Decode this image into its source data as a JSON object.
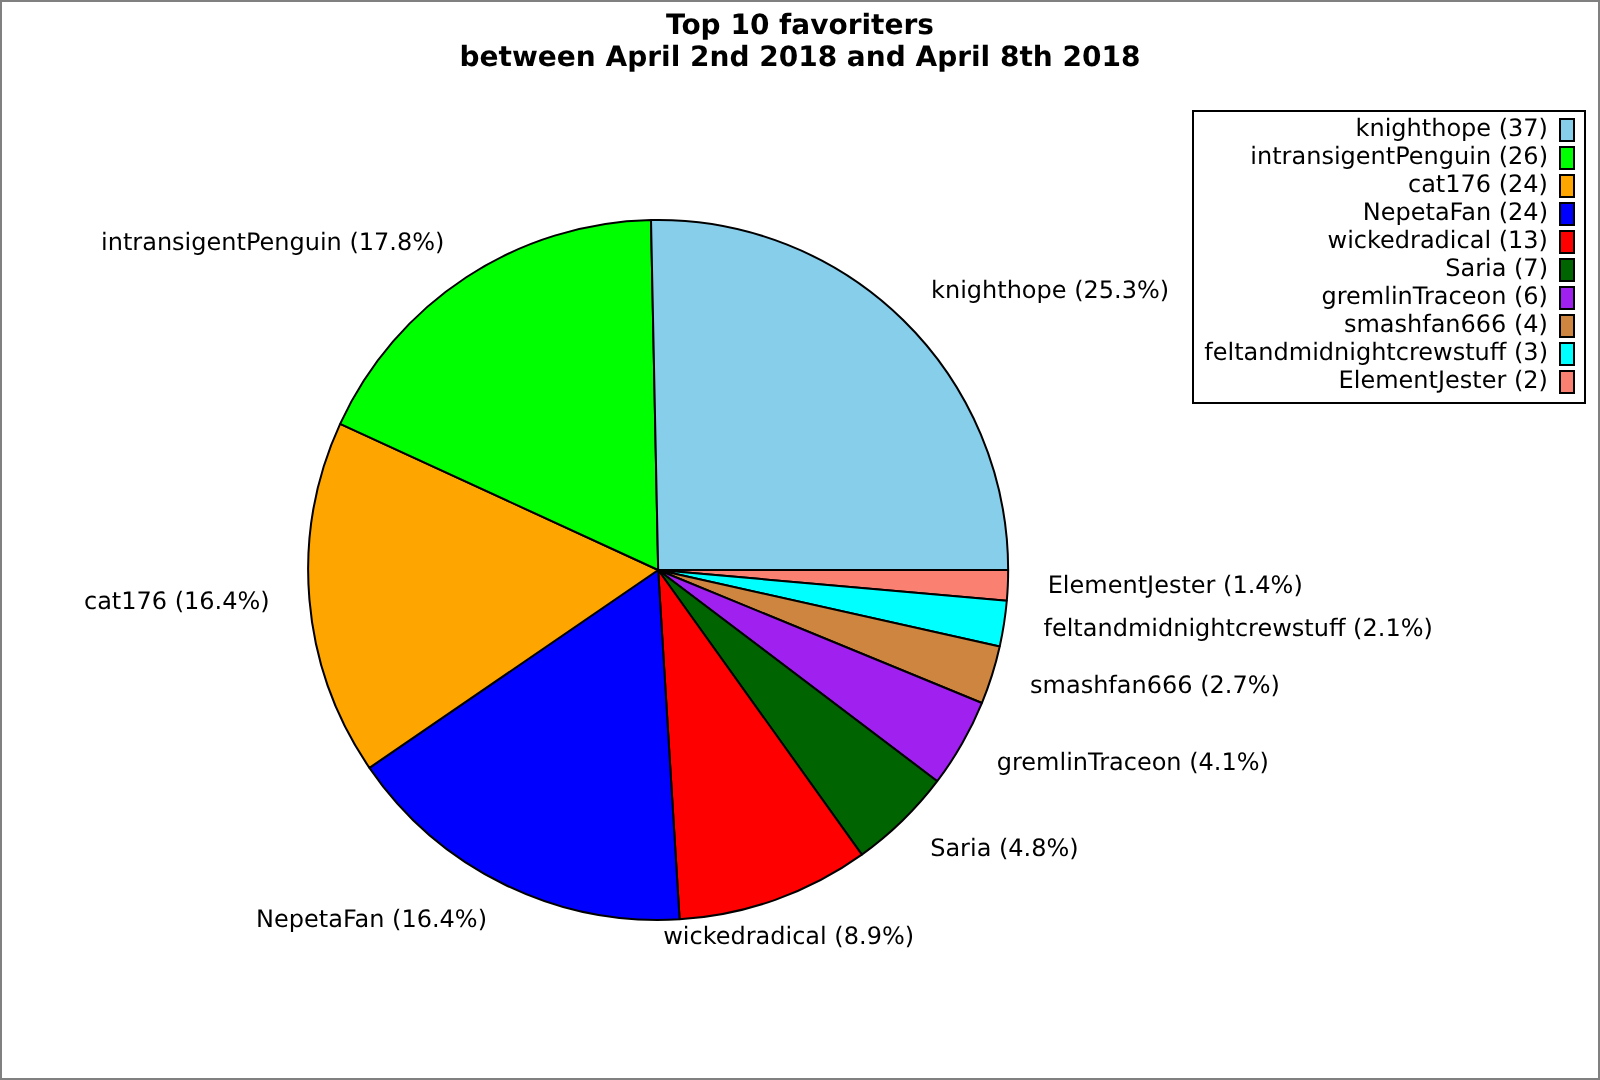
{
  "chart_data": {
    "type": "pie",
    "title": "Top 10 favoriters",
    "subtitle": "between April 2nd 2018 and April 8th 2018",
    "categories": [
      "knighthope (37)",
      "intransigentPenguin (26)",
      "cat176 (24)",
      "NepetaFan (24)",
      "wickedradical (13)",
      "Saria (7)",
      "gremlinTraceon (6)",
      "smashfan666 (4)",
      "feltandmidnightcrewstuff (3)",
      "ElementJester (2)"
    ],
    "values": [
      25.3,
      17.8,
      16.4,
      16.4,
      8.9,
      4.8,
      4.1,
      2.7,
      2.1,
      1.4
    ],
    "colors": [
      "#87ceeb",
      "#00ff00",
      "#ffa500",
      "#0000ff",
      "#ff0000",
      "#006400",
      "#a020f0",
      "#cd853f",
      "#00ffff",
      "#fa8072"
    ],
    "value_labels": [
      "knighthope (25.3%)",
      "intransigentPenguin (17.8%)",
      "cat176 (16.4%)",
      "NepetaFan (16.4%)",
      "wickedradical (8.9%)",
      "Saria (4.8%)",
      "gremlinTraceon (4.1%)",
      "smashfan666 (2.7%)",
      "feltandmidnightcrewstuff (2.1%)",
      "ElementJester (1.4%)"
    ],
    "legend": "top right"
  }
}
